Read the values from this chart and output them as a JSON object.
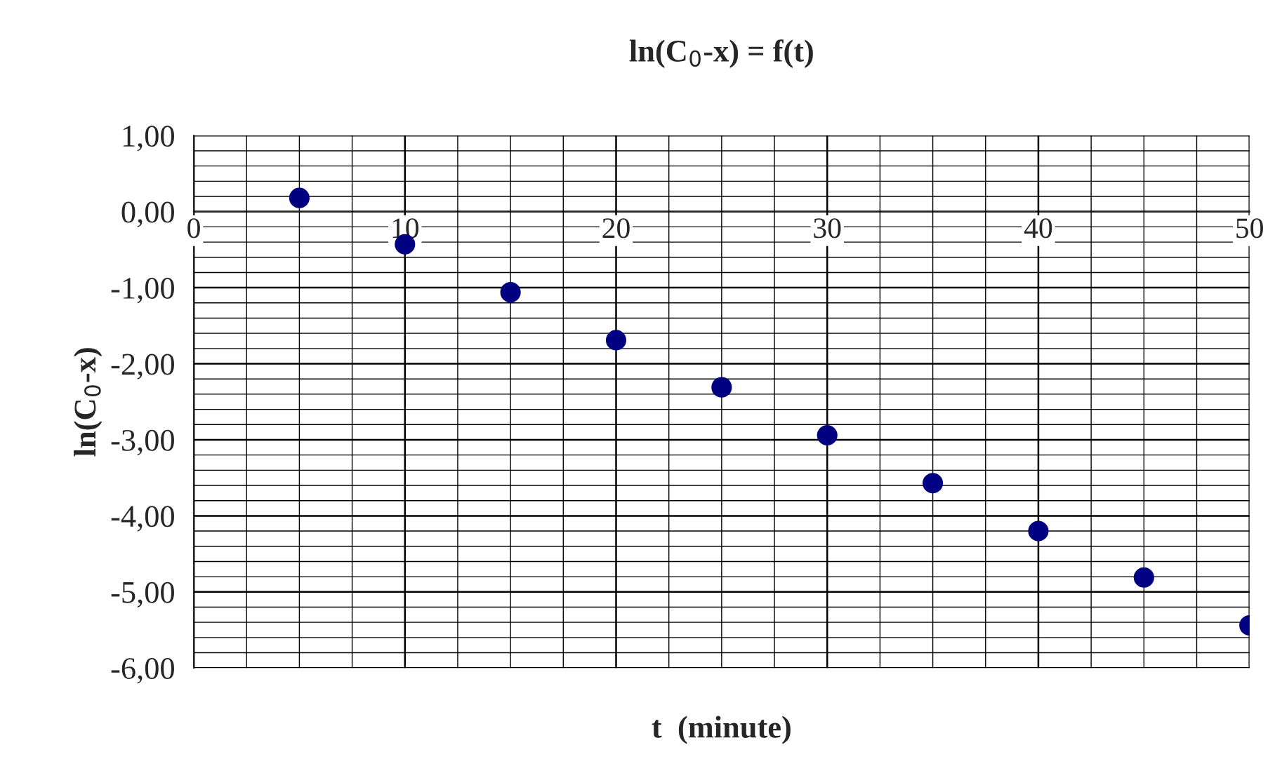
{
  "chart_data": {
    "type": "scatter",
    "title": "ln(C$_{0}$-x) = f(t)",
    "xlabel": "t  (minute)",
    "ylabel": "ln(C$_{0}$-x)",
    "x": [
      5,
      10,
      15,
      20,
      25,
      30,
      35,
      40,
      45,
      50
    ],
    "series": [
      {
        "color": "#000080",
        "values": [
          0.18,
          -0.43,
          -1.06,
          -1.69,
          -2.31,
          -2.94,
          -3.57,
          -4.2,
          -4.81,
          -5.44
        ]
      }
    ],
    "xlim": [
      0,
      50
    ],
    "xticks": [
      0,
      10,
      20,
      30,
      40,
      50
    ],
    "ylim": [
      -6,
      1
    ],
    "yticks": [
      {
        "value": -6,
        "label": "-6,00"
      },
      {
        "value": -5,
        "label": "-5,00"
      },
      {
        "value": -4,
        "label": "-4,00"
      },
      {
        "value": -3,
        "label": "-3,00"
      },
      {
        "value": -2,
        "label": "-2,00"
      },
      {
        "value": -1,
        "label": "-1,00"
      },
      {
        "value": 0,
        "label": "0,00"
      },
      {
        "value": 1,
        "label": "1,00"
      }
    ],
    "grid": true,
    "marker": "circle",
    "legend": false
  }
}
